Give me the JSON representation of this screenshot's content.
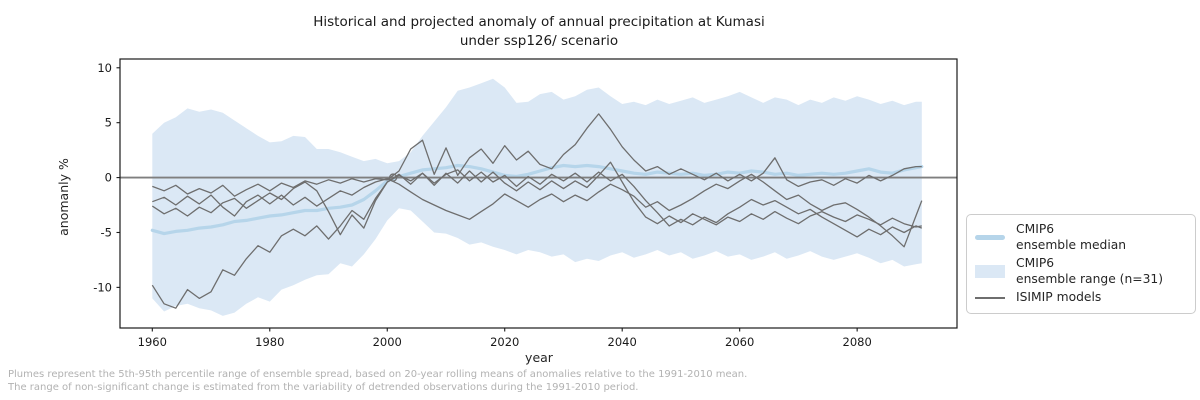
{
  "figure": {
    "title_line1": "Historical and projected anomaly of annual precipitation at Kumasi",
    "title_line2": "under ssp126/ scenario",
    "footer_line1": "Plumes represent the 5th-95th percentile range of ensemble spread, based on 20-year rolling means of anomalies relative to the 1991-2010 mean.",
    "footer_line2": "The range of non-significant change is estimated from the variability of detrended observations during the 1991-2010 period."
  },
  "legend": {
    "items": [
      {
        "line1": "CMIP6",
        "line2": "ensemble median"
      },
      {
        "line1": "CMIP6",
        "line2": "ensemble range (n=31)"
      },
      {
        "line1": "ISIMIP models",
        "line2": ""
      }
    ]
  },
  "chart_data": {
    "type": "line",
    "title": "Historical and projected anomaly of annual precipitation at Kumasi under ssp126/ scenario",
    "xlabel": "year",
    "ylabel": "anomanly %",
    "xlim": [
      1954.5,
      2097
    ],
    "ylim": [
      -13.7,
      10.8
    ],
    "xticks": [
      1960,
      1980,
      2000,
      2020,
      2040,
      2060,
      2080
    ],
    "yticks": [
      10,
      5,
      0,
      -5,
      -10
    ],
    "grid": false,
    "legend_position": "outside-right",
    "colors": {
      "band": "#dbe8f5",
      "median": "#b6d5ea",
      "model": "#6e6e6e",
      "zero_line": "#7f7f7f",
      "spine": "#1a1a1a",
      "tick_label": "#1a1a1a",
      "footer": "#b2b2b2"
    },
    "zero_line": 0,
    "convergence_marker": {
      "year": 2001,
      "value": 0
    },
    "years": [
      1960,
      1962,
      1964,
      1966,
      1968,
      1970,
      1972,
      1974,
      1976,
      1978,
      1980,
      1982,
      1984,
      1986,
      1988,
      1990,
      1992,
      1994,
      1996,
      1998,
      2000,
      2002,
      2004,
      2006,
      2008,
      2010,
      2012,
      2014,
      2016,
      2018,
      2020,
      2022,
      2024,
      2026,
      2028,
      2030,
      2032,
      2034,
      2036,
      2038,
      2040,
      2042,
      2044,
      2046,
      2048,
      2050,
      2052,
      2054,
      2056,
      2058,
      2060,
      2062,
      2064,
      2066,
      2068,
      2070,
      2072,
      2074,
      2076,
      2078,
      2080,
      2082,
      2084,
      2086,
      2088,
      2090,
      2091
    ],
    "series": [
      {
        "name": "CMIP6 ensemble range upper (95th pct)",
        "role": "band_top",
        "values": [
          4.0,
          5.0,
          5.5,
          6.3,
          6.0,
          6.2,
          5.9,
          5.2,
          4.5,
          3.8,
          3.2,
          3.3,
          3.8,
          3.7,
          2.6,
          2.6,
          2.3,
          1.9,
          1.5,
          1.7,
          1.3,
          1.5,
          2.3,
          3.8,
          5.1,
          6.4,
          7.9,
          8.2,
          8.6,
          9.0,
          8.2,
          6.8,
          6.9,
          7.6,
          7.8,
          7.1,
          7.4,
          8.0,
          8.2,
          7.4,
          6.7,
          6.9,
          6.6,
          7.1,
          6.7,
          7.0,
          7.3,
          6.8,
          7.1,
          7.4,
          7.8,
          7.3,
          6.8,
          7.3,
          7.1,
          6.6,
          7.1,
          6.8,
          7.3,
          7.0,
          7.4,
          7.1,
          6.7,
          7.0,
          6.6,
          6.9,
          6.9
        ]
      },
      {
        "name": "CMIP6 ensemble range lower (5th pct)",
        "role": "band_bottom",
        "values": [
          -11.0,
          -12.2,
          -11.7,
          -11.5,
          -11.9,
          -12.1,
          -12.6,
          -12.3,
          -11.5,
          -10.9,
          -11.3,
          -10.2,
          -9.8,
          -9.3,
          -8.9,
          -8.8,
          -7.8,
          -8.1,
          -7.0,
          -5.6,
          -3.9,
          -2.8,
          -3.0,
          -4.0,
          -5.0,
          -5.1,
          -5.5,
          -6.1,
          -5.9,
          -6.3,
          -6.6,
          -7.0,
          -6.6,
          -6.8,
          -7.2,
          -7.0,
          -7.7,
          -7.4,
          -7.6,
          -7.1,
          -6.8,
          -7.3,
          -7.0,
          -6.6,
          -7.1,
          -6.8,
          -7.4,
          -7.1,
          -6.7,
          -7.2,
          -7.0,
          -7.5,
          -7.2,
          -6.8,
          -7.4,
          -7.1,
          -6.7,
          -7.2,
          -7.5,
          -7.2,
          -6.9,
          -7.3,
          -7.8,
          -7.5,
          -8.1,
          -7.9,
          -7.8
        ]
      },
      {
        "name": "CMIP6 ensemble median",
        "role": "median",
        "values": [
          -4.8,
          -5.1,
          -4.9,
          -4.8,
          -4.6,
          -4.5,
          -4.3,
          -4.0,
          -3.9,
          -3.7,
          -3.5,
          -3.4,
          -3.2,
          -3.0,
          -3.0,
          -2.8,
          -2.7,
          -2.5,
          -2.0,
          -1.2,
          -0.3,
          0.1,
          0.4,
          0.7,
          0.8,
          0.9,
          1.1,
          1.0,
          0.8,
          0.5,
          0.2,
          0.1,
          0.3,
          0.6,
          0.9,
          1.1,
          1.0,
          1.1,
          1.0,
          0.8,
          0.6,
          0.4,
          0.3,
          0.5,
          0.4,
          0.3,
          0.4,
          0.2,
          0.3,
          0.5,
          0.4,
          0.6,
          0.5,
          0.3,
          0.4,
          0.2,
          0.3,
          0.4,
          0.3,
          0.4,
          0.6,
          0.8,
          0.5,
          0.4,
          0.7,
          0.9,
          1.0
        ]
      },
      {
        "name": "ISIMIP model 1",
        "role": "model",
        "values": [
          -0.8,
          -1.2,
          -0.7,
          -1.5,
          -1.0,
          -1.4,
          -0.7,
          -1.7,
          -1.1,
          -0.6,
          -1.2,
          -0.5,
          -0.9,
          -0.3,
          -0.6,
          -0.2,
          -0.5,
          -0.1,
          -0.4,
          -0.1,
          -0.2,
          0.6,
          2.6,
          3.4,
          0.3,
          2.7,
          0.2,
          1.8,
          2.6,
          1.3,
          2.9,
          1.6,
          2.4,
          1.2,
          0.8,
          2.1,
          3.0,
          4.5,
          5.8,
          4.4,
          2.8,
          1.6,
          0.6,
          1.0,
          0.3,
          0.8,
          0.3,
          -0.2,
          0.4,
          -0.3,
          0.3,
          -0.3,
          0.4,
          1.8,
          -0.2,
          -0.8,
          -0.4,
          -0.2,
          -0.7,
          -0.1,
          -0.5,
          0.2,
          -0.3,
          0.2,
          0.8,
          1.0,
          1.0
        ]
      },
      {
        "name": "ISIMIP model 2",
        "role": "model",
        "values": [
          -2.2,
          -1.8,
          -2.5,
          -1.7,
          -2.4,
          -1.6,
          -2.7,
          -3.5,
          -2.2,
          -1.6,
          -2.4,
          -1.6,
          -2.5,
          -1.8,
          -2.6,
          -1.9,
          -1.2,
          -1.6,
          -0.9,
          -0.4,
          -0.1,
          -0.6,
          -1.3,
          -2.0,
          -2.5,
          -3.0,
          -3.4,
          -3.8,
          -3.1,
          -2.4,
          -1.5,
          -2.1,
          -2.7,
          -2.0,
          -1.5,
          -2.2,
          -1.6,
          -2.1,
          -1.3,
          -0.6,
          -1.1,
          -1.7,
          -2.7,
          -2.2,
          -3.0,
          -2.5,
          -1.9,
          -1.2,
          -0.6,
          -1.0,
          -0.3,
          0.3,
          -0.4,
          -1.2,
          -2.0,
          -1.6,
          -2.4,
          -3.0,
          -2.5,
          -2.3,
          -2.9,
          -3.6,
          -4.4,
          -5.3,
          -6.3,
          -3.5,
          -2.1
        ]
      },
      {
        "name": "ISIMIP model 3",
        "role": "model",
        "values": [
          -2.6,
          -3.3,
          -2.8,
          -3.5,
          -2.7,
          -3.2,
          -2.3,
          -1.9,
          -2.8,
          -2.1,
          -1.4,
          -2.0,
          -1.0,
          -0.4,
          -1.2,
          -3.1,
          -5.2,
          -3.4,
          -4.6,
          -2.1,
          -0.4,
          0.3,
          -0.6,
          0.4,
          -0.7,
          0.4,
          -0.5,
          0.6,
          -0.4,
          0.5,
          -0.5,
          -1.2,
          -0.4,
          -1.1,
          -0.3,
          -1.0,
          -0.3,
          -0.9,
          0.2,
          1.4,
          -0.4,
          -2.2,
          -3.6,
          -4.2,
          -3.5,
          -4.1,
          -3.3,
          -3.8,
          -4.3,
          -3.6,
          -4.0,
          -3.3,
          -3.8,
          -3.1,
          -3.7,
          -4.2,
          -3.5,
          -3.1,
          -3.6,
          -4.0,
          -3.4,
          -3.8,
          -4.3,
          -3.7,
          -4.2,
          -4.5,
          -4.4
        ]
      },
      {
        "name": "ISIMIP model 4",
        "role": "model",
        "values": [
          -9.8,
          -11.5,
          -11.9,
          -10.2,
          -11.0,
          -10.4,
          -8.4,
          -8.9,
          -7.4,
          -6.2,
          -6.8,
          -5.3,
          -4.7,
          -5.3,
          -4.4,
          -5.6,
          -4.4,
          -3.0,
          -3.8,
          -1.9,
          -0.4,
          0.2,
          -0.3,
          0.4,
          -0.5,
          0.3,
          0.7,
          -0.3,
          0.5,
          -0.4,
          0.2,
          -0.8,
          0.1,
          -0.6,
          0.3,
          -0.3,
          0.4,
          -0.4,
          0.5,
          -0.3,
          0.3,
          -0.8,
          -2.1,
          -3.2,
          -4.4,
          -3.8,
          -4.3,
          -3.6,
          -4.1,
          -3.3,
          -2.7,
          -2.0,
          -2.5,
          -2.1,
          -2.7,
          -3.3,
          -2.9,
          -3.6,
          -4.2,
          -4.8,
          -5.4,
          -4.7,
          -5.2,
          -4.5,
          -5.0,
          -4.4,
          -4.6
        ]
      }
    ]
  }
}
